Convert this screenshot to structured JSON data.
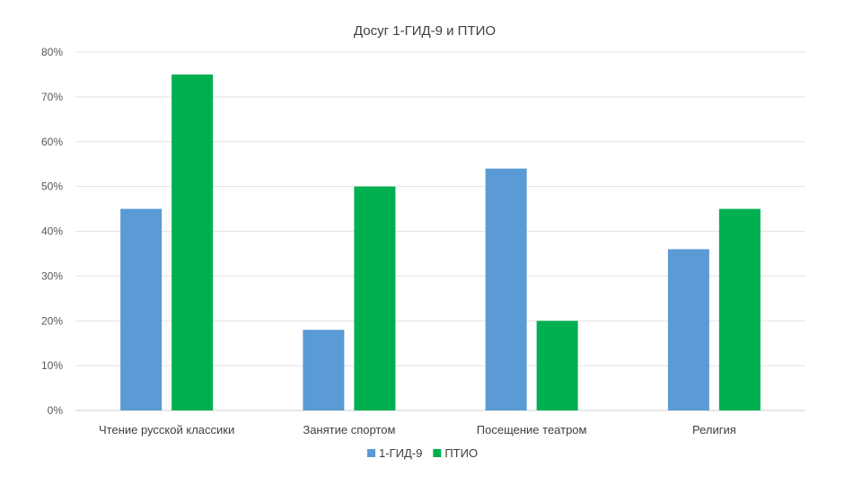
{
  "chart_data": {
    "type": "bar",
    "title": "Досуг 1-ГИД-9 и ПТИО",
    "categories": [
      "Чтение русской классики",
      "Занятие спортом",
      "Посещение театром",
      "Религия"
    ],
    "series": [
      {
        "name": "1-ГИД-9",
        "color": "#5b9bd5",
        "values": [
          45,
          18,
          54,
          36
        ]
      },
      {
        "name": "ПТИО",
        "color": "#00b050",
        "values": [
          75,
          50,
          20,
          45
        ]
      }
    ],
    "yticks": [
      "0%",
      "10%",
      "20%",
      "30%",
      "40%",
      "50%",
      "60%",
      "70%",
      "80%"
    ],
    "ylim": [
      0,
      80
    ],
    "grid": true,
    "legend_position": "bottom"
  }
}
